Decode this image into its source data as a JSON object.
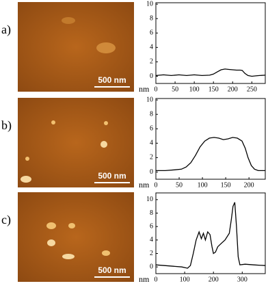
{
  "chart_data": [
    {
      "type": "line",
      "panel_label": "a)",
      "scale_bar": "500 nm",
      "x_label": "nm",
      "color": "#000000",
      "x": [
        0,
        20,
        40,
        60,
        80,
        100,
        120,
        140,
        150,
        160,
        170,
        180,
        190,
        200,
        210,
        220,
        225,
        232,
        240,
        250,
        260,
        270,
        285
      ],
      "values": [
        0.1,
        0.2,
        0.1,
        0.2,
        0.1,
        0.2,
        0.1,
        0.15,
        0.3,
        0.6,
        0.9,
        1.0,
        0.95,
        0.9,
        0.85,
        0.85,
        0.8,
        0.4,
        0.1,
        0.0,
        0.05,
        0.1,
        0.15
      ],
      "xlim": [
        0,
        285
      ],
      "ylim": [
        -1,
        10.2
      ],
      "xticks": [
        0,
        50,
        100,
        150,
        200,
        250
      ],
      "yticks": [
        0,
        2,
        4,
        6,
        8,
        10
      ]
    },
    {
      "type": "line",
      "panel_label": "b)",
      "scale_bar": "500 nm",
      "x_label": "nm",
      "color": "#000000",
      "x": [
        0,
        20,
        40,
        55,
        65,
        75,
        85,
        95,
        105,
        115,
        125,
        135,
        145,
        155,
        165,
        175,
        185,
        192,
        198,
        205,
        212,
        220,
        235
      ],
      "values": [
        0.2,
        0.2,
        0.3,
        0.4,
        0.7,
        1.3,
        2.3,
        3.5,
        4.3,
        4.7,
        4.8,
        4.7,
        4.5,
        4.6,
        4.8,
        4.7,
        4.3,
        3.3,
        2.0,
        0.9,
        0.4,
        0.2,
        0.2
      ],
      "xlim": [
        0,
        235
      ],
      "ylim": [
        -1,
        10.2
      ],
      "xticks": [
        0,
        50,
        100,
        150,
        200
      ],
      "yticks": [
        0,
        2,
        4,
        6,
        8,
        10
      ]
    },
    {
      "type": "line",
      "panel_label": "c)",
      "scale_bar": "500 nm",
      "x_label": "nm",
      "color": "#000000",
      "x": [
        0,
        30,
        60,
        90,
        110,
        120,
        130,
        140,
        150,
        158,
        165,
        172,
        180,
        188,
        195,
        200,
        207,
        215,
        225,
        240,
        255,
        262,
        268,
        274,
        280,
        286,
        292,
        310,
        340,
        380
      ],
      "values": [
        0.3,
        0.2,
        0.1,
        0.0,
        -0.2,
        0.2,
        2.0,
        4.0,
        5.2,
        4.2,
        5.0,
        4.0,
        5.2,
        4.8,
        3.0,
        2.0,
        2.2,
        3.0,
        3.4,
        4.0,
        5.0,
        7.0,
        9.0,
        9.6,
        6.0,
        1.5,
        0.3,
        0.4,
        0.3,
        0.2
      ],
      "xlim": [
        0,
        380
      ],
      "ylim": [
        -1,
        11
      ],
      "xticks": [
        0,
        100,
        200,
        300
      ],
      "yticks": [
        0,
        2,
        4,
        6,
        8,
        10
      ]
    }
  ]
}
